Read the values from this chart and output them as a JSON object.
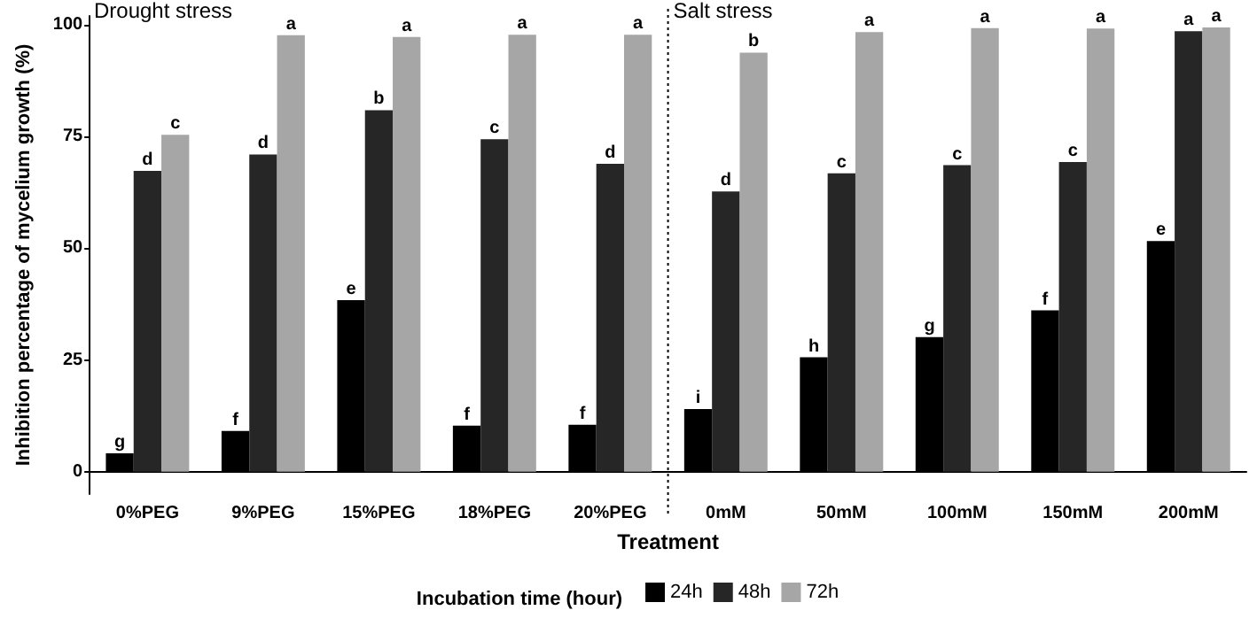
{
  "chart_data": {
    "type": "bar",
    "xlabel": "Treatment",
    "ylabel": "Inhibition percentage of mycelium growth (%)",
    "legend_title": "Incubation time (hour)",
    "categories": [
      "0%PEG",
      "9%PEG",
      "15%PEG",
      "18%PEG",
      "20%PEG",
      "0mM",
      "50mM",
      "100mM",
      "150mM",
      "200mM"
    ],
    "series": [
      {
        "name": "24h",
        "color": "#000000",
        "values": [
          4.1,
          9.1,
          38.4,
          10.3,
          10.5,
          14.0,
          25.6,
          30.1,
          36.1,
          51.6
        ],
        "value_labels": [
          "g",
          "f",
          "e",
          "f",
          "f",
          "i",
          "h",
          "g",
          "f",
          "e"
        ]
      },
      {
        "name": "48h",
        "color": "#262626",
        "values": [
          67.3,
          71.0,
          80.9,
          74.4,
          68.9,
          62.7,
          66.8,
          68.6,
          69.3,
          98.6
        ],
        "value_labels": [
          "d",
          "d",
          "b",
          "c",
          "d",
          "d",
          "c",
          "c",
          "c",
          "a"
        ]
      },
      {
        "name": "72h",
        "color": "#a6a6a6",
        "values": [
          75.4,
          97.7,
          97.3,
          97.8,
          97.8,
          93.8,
          98.4,
          99.3,
          99.2,
          99.4
        ],
        "value_labels": [
          "c",
          "a",
          "a",
          "a",
          "a",
          "b",
          "a",
          "a",
          "a",
          "a"
        ]
      }
    ],
    "ylim": [
      -5,
      102
    ],
    "yticks": [
      0,
      25,
      50,
      75,
      100
    ],
    "grid": false,
    "legend": "bottom",
    "annotations": [
      "Drought stress",
      "Salt stress"
    ]
  }
}
